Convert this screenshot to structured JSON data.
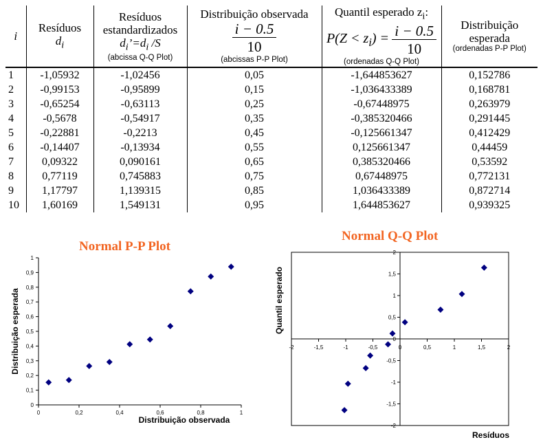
{
  "table": {
    "headers": {
      "i": "i",
      "residuos": [
        "Resíduos",
        "d"
      ],
      "residuos_sub": "i",
      "std": "Resíduos",
      "std2": "estandardizados",
      "std_formula": "d",
      "std_formula_tail": "=d",
      "std_formula_tail2": " /S",
      "std_note": "(abcissa Q-Q Plot)",
      "obs": "Distribuição observada",
      "obs_num": "i − 0.5",
      "obs_den": "10",
      "obs_note": "(abcissas P-P Plot)",
      "quant": "Quantil esperado z",
      "quant_tail": ":",
      "quant_formula": "P(Z < z",
      "quant_formula_tail": ") =",
      "quant_num": "i − 0.5",
      "quant_den": "10",
      "quant_note": "(ordenadas Q-Q Plot)",
      "dist": "Distribuição",
      "dist2": "esperada",
      "dist_note": "(ordenadas P-P Plot)"
    },
    "rows": [
      [
        "1",
        "-1,05932",
        "-1,02456",
        "0,05",
        "-1,644853627",
        "0,152786"
      ],
      [
        "2",
        "-0,99153",
        "-0,95899",
        "0,15",
        "-1,036433389",
        "0,168781"
      ],
      [
        "3",
        "-0,65254",
        "-0,63113",
        "0,25",
        "-0,67448975",
        "0,263979"
      ],
      [
        "4",
        "-0,5678",
        "-0,54917",
        "0,35",
        "-0,385320466",
        "0,291445"
      ],
      [
        "5",
        "-0,22881",
        "-0,2213",
        "0,45",
        "-0,125661347",
        "0,412429"
      ],
      [
        "6",
        "-0,14407",
        "-0,13934",
        "0,55",
        "0,125661347",
        "0,44459"
      ],
      [
        "7",
        "0,09322",
        "0,090161",
        "0,65",
        "0,385320466",
        "0,53592"
      ],
      [
        "8",
        "0,77119",
        "0,745883",
        "0,75",
        "0,67448975",
        "0,772131"
      ],
      [
        "9",
        "1,17797",
        "1,139315",
        "0,85",
        "1,036433389",
        "0,872714"
      ],
      [
        "10",
        "1,60169",
        "1,549131",
        "0,95",
        "1,644853627",
        "0,939325"
      ]
    ]
  },
  "chart_data": [
    {
      "type": "scatter",
      "title": "Normal P-P Plot",
      "xlabel": "Distribuição observada",
      "ylabel": "Distribuição esperada",
      "xlim": [
        0,
        1
      ],
      "ylim": [
        0,
        1
      ],
      "xticks": [
        0,
        0.2,
        0.4,
        0.6,
        0.8,
        1
      ],
      "xtick_labels": [
        "0",
        "0,2",
        "0,4",
        "0,6",
        "0,8",
        "1"
      ],
      "yticks": [
        0,
        0.1,
        0.2,
        0.3,
        0.4,
        0.5,
        0.6,
        0.7,
        0.8,
        0.9,
        1
      ],
      "ytick_labels": [
        "0",
        "0,1",
        "0,2",
        "0,3",
        "0,4",
        "0,5",
        "0,6",
        "0,7",
        "0,8",
        "0,9",
        "1"
      ],
      "marker_color": "#000080",
      "x": [
        0.05,
        0.15,
        0.25,
        0.35,
        0.45,
        0.55,
        0.65,
        0.75,
        0.85,
        0.95
      ],
      "y": [
        0.152786,
        0.168781,
        0.263979,
        0.291445,
        0.412429,
        0.44459,
        0.53592,
        0.772131,
        0.872714,
        0.939325
      ]
    },
    {
      "type": "scatter",
      "title": "Normal Q-Q Plot",
      "xlabel": "Resíduos",
      "ylabel": "Quantil esperado",
      "xlim": [
        -2,
        2
      ],
      "ylim": [
        -2,
        2
      ],
      "xticks": [
        -2,
        -1.5,
        -1,
        -0.5,
        0,
        0.5,
        1,
        1.5,
        2
      ],
      "xtick_labels": [
        "-2",
        "-1,5",
        "-1",
        "-0,5",
        "0",
        "0,5",
        "1",
        "1,5",
        "2"
      ],
      "yticks": [
        -2,
        -1.5,
        -1,
        -0.5,
        0,
        0.5,
        1,
        1.5,
        2
      ],
      "ytick_labels": [
        "-2",
        "-1,5",
        "-1",
        "-0,5",
        "0",
        "0,5",
        "1",
        "1,5",
        "2"
      ],
      "marker_color": "#000080",
      "x": [
        -1.02456,
        -0.95899,
        -0.63113,
        -0.54917,
        -0.2213,
        -0.13934,
        0.090161,
        0.745883,
        1.139315,
        1.549131
      ],
      "y": [
        -1.644853627,
        -1.036433389,
        -0.67448975,
        -0.385320466,
        -0.125661347,
        0.125661347,
        0.385320466,
        0.67448975,
        1.036433389,
        1.644853627
      ]
    }
  ]
}
